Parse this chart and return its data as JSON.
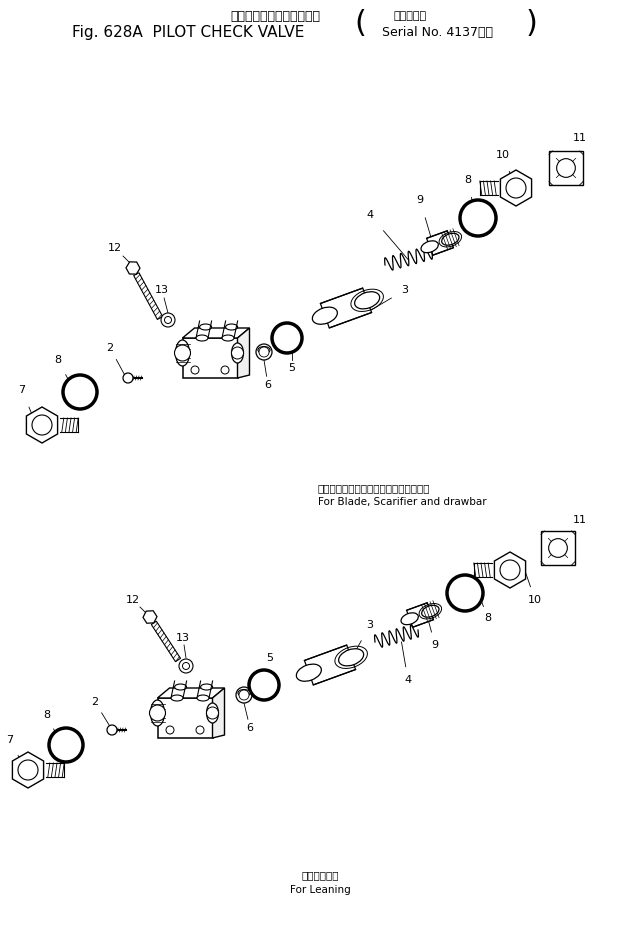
{
  "title_jp": "パイロットチェックバルブ",
  "title_serial_jp": "（適用号機",
  "title_fig": "Fig. 628A  PILOT CHECK VALVE",
  "title_serial": "Serial No. 4137～）",
  "label_blade_jp": "ブレード、スカリファイヤ、ドローバ用",
  "label_blade_en": "For Blade, Scarifier and drawbar",
  "label_lean_jp": "リーニング用",
  "label_lean_en": "For Leaning",
  "bg_color": "#ffffff"
}
